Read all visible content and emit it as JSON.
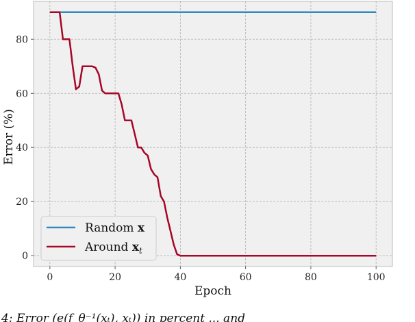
{
  "chart_data": {
    "type": "line",
    "title": "",
    "xlabel": "Epoch",
    "ylabel": "Error (%)",
    "xlim": [
      -5,
      105
    ],
    "ylim": [
      -4,
      94
    ],
    "xticks": [
      0,
      20,
      40,
      60,
      80,
      100
    ],
    "yticks": [
      0,
      20,
      40,
      60,
      80
    ],
    "grid": true,
    "legend_position": "bottom-left",
    "series": [
      {
        "name": "Random x",
        "color": "#348abd",
        "x": [
          0,
          100
        ],
        "y": [
          90,
          90
        ]
      },
      {
        "name": "Around x_t",
        "color": "#a60628",
        "x": [
          0,
          3,
          4,
          6,
          7,
          8,
          9,
          10,
          11,
          13,
          14,
          15,
          16,
          17,
          18,
          20,
          21,
          22,
          23,
          24,
          25,
          26,
          27,
          28,
          29,
          30,
          31,
          32,
          33,
          34,
          35,
          36,
          37,
          38,
          39,
          40,
          50,
          60,
          70,
          80,
          90,
          100
        ],
        "y": [
          90,
          90,
          80,
          80,
          70,
          61.5,
          62.5,
          70,
          70,
          70,
          69.5,
          67,
          61,
          60,
          60,
          60,
          60,
          56,
          50,
          50,
          50,
          45,
          40,
          40,
          38,
          37,
          32,
          30,
          29,
          22,
          20,
          14,
          9,
          4,
          0.5,
          0,
          0,
          0,
          0,
          0,
          0,
          0
        ]
      }
    ]
  },
  "legend": {
    "random_label_text": "Random ",
    "random_label_bold": "x",
    "around_label_text": "Around ",
    "around_label_bold": "x",
    "around_label_sub": "t"
  },
  "caption": {
    "text": "4: Error (e(f_θ⁻¹(xₜ), xₜ)) in percent ... and"
  }
}
